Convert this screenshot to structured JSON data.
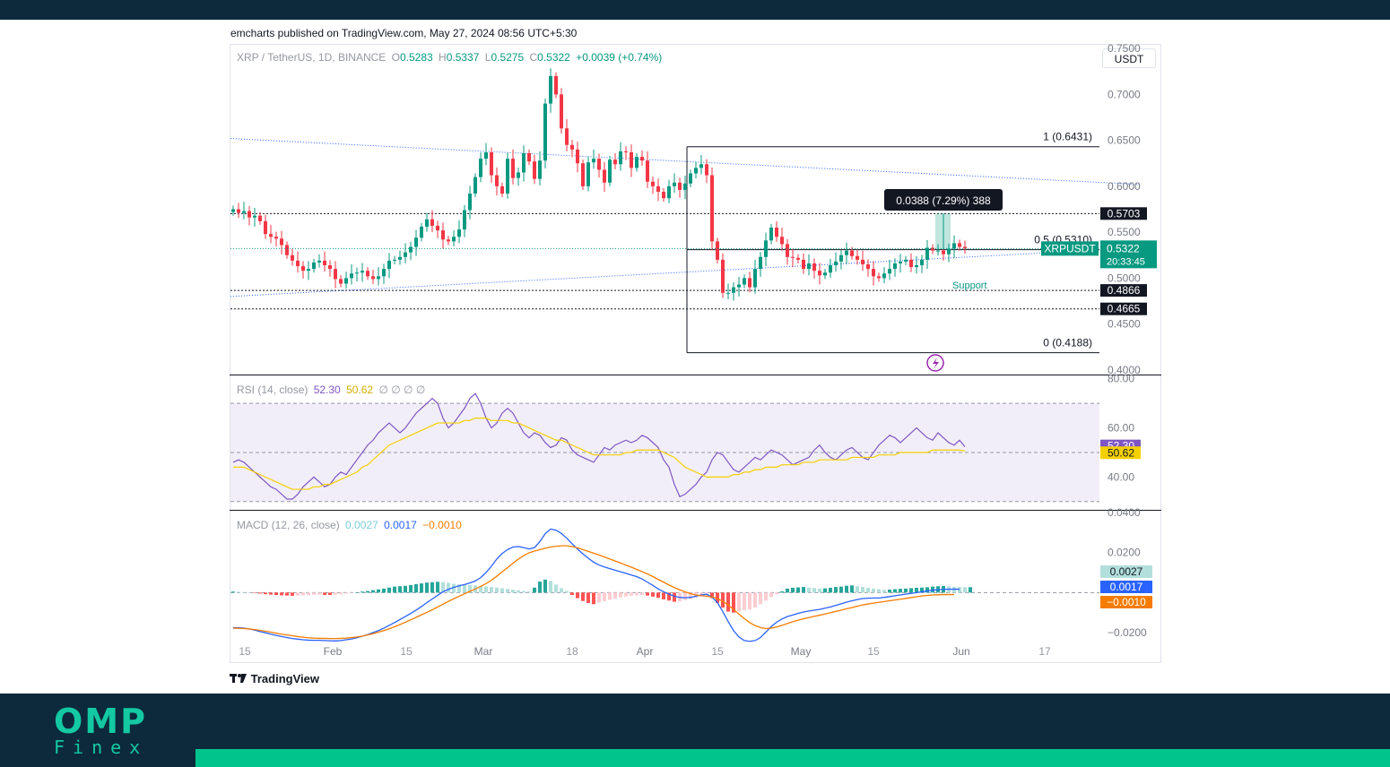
{
  "published_line": "emcharts published on TradingView.com, May 27, 2024 08:56 UTC+5:30",
  "currency_button": "USDT",
  "brand": {
    "logo_top": "OMP",
    "logo_bottom": "Finex",
    "tradingview": "TradingView"
  },
  "colors": {
    "up": "#089981",
    "down": "#f23645",
    "header_bar": "#0c2a3c",
    "accent": "#00c48c"
  },
  "header": {
    "symbol": "XRP / TetherUS, 1D, BINANCE",
    "o_label": "O",
    "o": "0.5283",
    "h_label": "H",
    "h": "0.5337",
    "l_label": "L",
    "l": "0.5275",
    "c_label": "C",
    "c": "0.5322",
    "change": "+0.0039 (+0.74%)"
  },
  "rsi_header": {
    "label": "RSI (14, close)",
    "rsi": "52.30",
    "ma": "50.62"
  },
  "macd_header": {
    "label": "MACD (12, 26, close)",
    "hist": "0.0027",
    "macd": "0.0017",
    "signal": "−0.0010"
  },
  "chart_data": [
    {
      "type": "candlestick",
      "title": "XRP / TetherUS, 1D, BINANCE",
      "x_ticks": [
        "15",
        "Feb",
        "15",
        "Mar",
        "18",
        "Apr",
        "15",
        "May",
        "15",
        "Jun",
        "17"
      ],
      "price_axis": [
        "0.7500",
        "0.7000",
        "0.6500",
        "0.6000",
        "0.5500",
        "0.5000",
        "0.4500",
        "0.4000"
      ],
      "ylim": [
        0.395,
        0.755
      ],
      "fib_levels": [
        {
          "label": "1 (0.6431)",
          "value": 0.6431
        },
        {
          "label": "0.5 (0.5310)",
          "value": 0.531
        },
        {
          "label": "0 (0.4188)",
          "value": 0.4188
        }
      ],
      "horizontal_levels": [
        {
          "label": "0.5703",
          "value": 0.5703
        },
        {
          "label": "0.4866",
          "value": 0.4866
        },
        {
          "label": "0.4665",
          "value": 0.4665
        }
      ],
      "annotations": {
        "support": "Support",
        "measure": "0.0388 (7.29%) 388"
      },
      "last_price": {
        "symbol": "XRPUSDT",
        "value": "0.5322",
        "countdown": "20:33:45"
      },
      "trendlines": [
        {
          "from": [
            "2024-01-08",
            0.652
          ],
          "to": [
            "2024-06-25",
            0.602
          ]
        },
        {
          "from": [
            "2024-01-08",
            0.48
          ],
          "to": [
            "2024-06-25",
            0.533
          ]
        }
      ],
      "ohlc_closes": [
        0.575,
        0.571,
        0.573,
        0.566,
        0.568,
        0.562,
        0.548,
        0.545,
        0.543,
        0.536,
        0.525,
        0.519,
        0.513,
        0.508,
        0.51,
        0.517,
        0.519,
        0.514,
        0.51,
        0.499,
        0.494,
        0.5,
        0.505,
        0.506,
        0.508,
        0.502,
        0.499,
        0.502,
        0.51,
        0.519,
        0.52,
        0.523,
        0.528,
        0.534,
        0.544,
        0.556,
        0.564,
        0.557,
        0.552,
        0.542,
        0.54,
        0.545,
        0.553,
        0.574,
        0.592,
        0.61,
        0.63,
        0.637,
        0.612,
        0.6,
        0.592,
        0.63,
        0.609,
        0.615,
        0.636,
        0.627,
        0.608,
        0.628,
        0.69,
        0.72,
        0.7,
        0.663,
        0.645,
        0.64,
        0.625,
        0.6,
        0.626,
        0.63,
        0.618,
        0.604,
        0.629,
        0.624,
        0.638,
        0.637,
        0.62,
        0.632,
        0.628,
        0.605,
        0.6,
        0.594,
        0.587,
        0.6,
        0.604,
        0.596,
        0.603,
        0.614,
        0.62,
        0.624,
        0.612,
        0.54,
        0.52,
        0.484,
        0.484,
        0.49,
        0.493,
        0.5,
        0.49,
        0.51,
        0.523,
        0.541,
        0.555,
        0.545,
        0.537,
        0.523,
        0.522,
        0.52,
        0.51,
        0.516,
        0.508,
        0.503,
        0.506,
        0.514,
        0.518,
        0.525,
        0.53,
        0.524,
        0.52,
        0.515,
        0.51,
        0.502,
        0.5,
        0.505,
        0.51,
        0.516,
        0.518,
        0.52,
        0.512,
        0.514,
        0.52,
        0.533,
        0.53,
        0.53,
        0.526,
        0.532,
        0.538,
        0.534,
        0.5322
      ]
    },
    {
      "type": "line",
      "title": "RSI (14, close)",
      "y_ticks": [
        "80.00",
        "60.00",
        "40.00"
      ],
      "bands": [
        70,
        50,
        30
      ],
      "ylim": [
        27,
        81
      ],
      "series": [
        {
          "name": "RSI",
          "last": 52.3,
          "values": [
            46,
            47,
            46,
            44,
            42,
            40,
            38,
            36,
            35,
            33,
            31,
            31,
            33,
            36,
            38,
            40,
            38,
            36,
            37,
            40,
            42,
            41,
            44,
            47,
            50,
            53,
            55,
            58,
            60,
            62,
            60,
            58,
            60,
            63,
            66,
            68,
            70,
            72,
            70,
            64,
            60,
            62,
            65,
            68,
            72,
            74,
            70,
            64,
            60,
            62,
            66,
            68,
            66,
            62,
            58,
            56,
            58,
            57,
            54,
            52,
            53,
            56,
            55,
            51,
            49,
            48,
            47,
            46,
            49,
            52,
            51,
            53,
            54,
            55,
            54,
            55,
            57,
            56,
            54,
            52,
            47,
            44,
            37,
            32,
            33,
            35,
            37,
            40,
            42,
            47,
            50,
            49,
            46,
            43,
            42,
            44,
            46,
            48,
            47,
            49,
            51,
            50,
            49,
            47,
            45,
            46,
            47,
            48,
            51,
            53,
            50,
            48,
            47,
            49,
            51,
            52,
            50,
            48,
            47,
            50,
            53,
            55,
            57,
            56,
            54,
            56,
            58,
            60,
            58,
            56,
            55,
            58,
            56,
            54,
            53,
            55,
            52.3
          ]
        },
        {
          "name": "RSI-based MA",
          "last": 50.62,
          "values": [
            44,
            44,
            44,
            43,
            42,
            41,
            40,
            39,
            38,
            37,
            36,
            35,
            35,
            35,
            35,
            36,
            36,
            37,
            37,
            38,
            39,
            40,
            41,
            42,
            44,
            45,
            47,
            49,
            51,
            53,
            54,
            55,
            56,
            57,
            58,
            59,
            60,
            61,
            62,
            62,
            62,
            62,
            62,
            63,
            63,
            64,
            64,
            64,
            63,
            63,
            63,
            63,
            62,
            62,
            61,
            60,
            59,
            58,
            57,
            56,
            55,
            55,
            54,
            53,
            52,
            51,
            50,
            49,
            49,
            49,
            49,
            49,
            49,
            50,
            50,
            51,
            51,
            51,
            51,
            51,
            50,
            49,
            48,
            46,
            44,
            43,
            42,
            41,
            40,
            40,
            40,
            40,
            40,
            41,
            41,
            42,
            42,
            43,
            43,
            44,
            44,
            44,
            45,
            45,
            45,
            45,
            46,
            46,
            46,
            47,
            47,
            47,
            47,
            47,
            47,
            48,
            48,
            48,
            48,
            48,
            49,
            49,
            49,
            49,
            50,
            50,
            50,
            50,
            50,
            50,
            51,
            51,
            51,
            51,
            51,
            51,
            50.62
          ]
        }
      ]
    },
    {
      "type": "bar",
      "title": "MACD (12, 26, close)",
      "y_ticks": [
        "0.0400",
        "0.0200",
        "-0.0200"
      ],
      "ylim": [
        -0.0245,
        0.0405
      ],
      "series": [
        {
          "name": "Histogram",
          "last": 0.0027,
          "values": [
            0.0005,
            0.0004,
            0.0002,
            0.0001,
            -0.0002,
            -0.0005,
            -0.0008,
            -0.001,
            -0.0012,
            -0.0014,
            -0.0015,
            -0.0016,
            -0.0015,
            -0.0014,
            -0.0013,
            -0.0011,
            -0.001,
            -0.0012,
            -0.0012,
            -0.0011,
            -0.0008,
            -0.0005,
            -0.0002,
            0.0001,
            0.0005,
            0.0008,
            0.0012,
            0.0016,
            0.002,
            0.0025,
            0.003,
            0.0032,
            0.0034,
            0.0038,
            0.0042,
            0.0046,
            0.005,
            0.0052,
            0.0054,
            0.0053,
            0.0049,
            0.0044,
            0.0041,
            0.0039,
            0.0038,
            0.0036,
            0.0034,
            0.0031,
            0.0028,
            0.0025,
            0.0022,
            0.0018,
            0.0015,
            0.0012,
            0.0008,
            0.0005,
            0.0025,
            0.0055,
            0.0065,
            0.0058,
            0.004,
            0.0022,
            0.0008,
            -0.0012,
            -0.0028,
            -0.0042,
            -0.0052,
            -0.0058,
            -0.005,
            -0.0043,
            -0.0036,
            -0.003,
            -0.0024,
            -0.002,
            -0.0016,
            -0.0014,
            -0.0012,
            -0.0015,
            -0.002,
            -0.0026,
            -0.0034,
            -0.004,
            -0.0046,
            -0.0044,
            -0.0038,
            -0.0032,
            -0.0025,
            -0.0018,
            -0.0014,
            -0.0028,
            -0.0052,
            -0.0075,
            -0.0095,
            -0.01,
            -0.0094,
            -0.0088,
            -0.0085,
            -0.0075,
            -0.0058,
            -0.004,
            -0.0022,
            -0.0008,
            0.0006,
            0.002,
            0.0024,
            0.0026,
            0.0028,
            0.0025,
            0.0023,
            0.002,
            0.0021,
            0.0024,
            0.0028,
            0.003,
            0.0034,
            0.0036,
            0.0032,
            0.0028,
            0.0024,
            0.002,
            0.0017,
            0.0014,
            0.0015,
            0.0017,
            0.0019,
            0.002,
            0.0022,
            0.0024,
            0.0025,
            0.0027,
            0.003,
            0.0032,
            0.0033,
            0.0031,
            0.0029,
            0.0028,
            0.0027,
            0.0027
          ]
        },
        {
          "name": "MACD",
          "last": 0.0017,
          "values": [
            -0.0175,
            -0.0176,
            -0.0178,
            -0.0182,
            -0.0188,
            -0.0195,
            -0.0201,
            -0.0208,
            -0.0214,
            -0.022,
            -0.0225,
            -0.023,
            -0.0233,
            -0.0236,
            -0.0238,
            -0.0239,
            -0.0239,
            -0.024,
            -0.0241,
            -0.0242,
            -0.024,
            -0.0236,
            -0.0232,
            -0.0226,
            -0.0218,
            -0.021,
            -0.02,
            -0.019,
            -0.0178,
            -0.0164,
            -0.015,
            -0.0135,
            -0.012,
            -0.0104,
            -0.0088,
            -0.007,
            -0.005,
            -0.0032,
            -0.0014,
            0.0004,
            0.0016,
            0.0026,
            0.0034,
            0.004,
            0.0048,
            0.0058,
            0.0075,
            0.01,
            0.0132,
            0.0168,
            0.0196,
            0.0215,
            0.0228,
            0.023,
            0.0225,
            0.0218,
            0.0225,
            0.0255,
            0.0295,
            0.0318,
            0.0312,
            0.0296,
            0.0272,
            0.0244,
            0.0218,
            0.0194,
            0.0172,
            0.0152,
            0.0138,
            0.0128,
            0.012,
            0.0112,
            0.0104,
            0.0096,
            0.0088,
            0.008,
            0.0068,
            0.0052,
            0.0036,
            0.0018,
            0.0004,
            -0.0008,
            -0.0018,
            -0.0024,
            -0.0026,
            -0.0024,
            -0.0018,
            -0.0012,
            -0.0008,
            -0.0022,
            -0.005,
            -0.0095,
            -0.0145,
            -0.019,
            -0.0222,
            -0.024,
            -0.0244,
            -0.024,
            -0.0225,
            -0.0198,
            -0.017,
            -0.0148,
            -0.0132,
            -0.012,
            -0.0112,
            -0.0104,
            -0.0097,
            -0.0092,
            -0.0088,
            -0.0084,
            -0.0078,
            -0.0072,
            -0.0064,
            -0.0056,
            -0.0048,
            -0.0041,
            -0.0035,
            -0.003,
            -0.0028,
            -0.0027,
            -0.0027,
            -0.0024,
            -0.002,
            -0.0016,
            -0.0012,
            -0.0008,
            -0.0004,
            0.0,
            0.0004,
            0.0008,
            0.0012,
            0.0014,
            0.0016,
            0.0017,
            0.0017,
            0.0017
          ]
        },
        {
          "name": "Signal",
          "last": -0.001,
          "values": [
            -0.0178,
            -0.0179,
            -0.018,
            -0.0182,
            -0.0185,
            -0.0189,
            -0.0193,
            -0.0198,
            -0.0203,
            -0.0208,
            -0.0212,
            -0.0216,
            -0.022,
            -0.0223,
            -0.0226,
            -0.0228,
            -0.0229,
            -0.0229,
            -0.023,
            -0.023,
            -0.0229,
            -0.0228,
            -0.0225,
            -0.0222,
            -0.0218,
            -0.0212,
            -0.0206,
            -0.0198,
            -0.019,
            -0.0181,
            -0.0171,
            -0.016,
            -0.0148,
            -0.0136,
            -0.0124,
            -0.0111,
            -0.0099,
            -0.0086,
            -0.0072,
            -0.0058,
            -0.0044,
            -0.0031,
            -0.0018,
            -0.0006,
            0.0006,
            0.0018,
            0.0031,
            0.0045,
            0.0062,
            0.0082,
            0.0104,
            0.0125,
            0.0147,
            0.0167,
            0.0185,
            0.0199,
            0.0208,
            0.0215,
            0.0222,
            0.0228,
            0.0232,
            0.0234,
            0.0234,
            0.023,
            0.0224,
            0.0215,
            0.0206,
            0.0197,
            0.0188,
            0.0178,
            0.0168,
            0.0158,
            0.0148,
            0.0137,
            0.0127,
            0.0116,
            0.0105,
            0.0093,
            0.008,
            0.0066,
            0.0052,
            0.0038,
            0.0025,
            0.0014,
            0.0004,
            -0.0005,
            -0.0012,
            -0.0016,
            -0.0018,
            -0.0022,
            -0.003,
            -0.0044,
            -0.0062,
            -0.0084,
            -0.0108,
            -0.013,
            -0.015,
            -0.0165,
            -0.0175,
            -0.018,
            -0.0178,
            -0.0172,
            -0.0164,
            -0.0155,
            -0.0146,
            -0.0138,
            -0.0131,
            -0.0125,
            -0.0119,
            -0.0113,
            -0.0107,
            -0.0101,
            -0.0094,
            -0.0088,
            -0.0081,
            -0.0075,
            -0.0068,
            -0.0062,
            -0.0057,
            -0.0053,
            -0.0049,
            -0.0045,
            -0.0041,
            -0.0037,
            -0.0033,
            -0.0029,
            -0.0025,
            -0.0021,
            -0.0017,
            -0.0014,
            -0.0012,
            -0.0011,
            -0.001,
            -0.001,
            -0.001
          ]
        }
      ]
    }
  ]
}
